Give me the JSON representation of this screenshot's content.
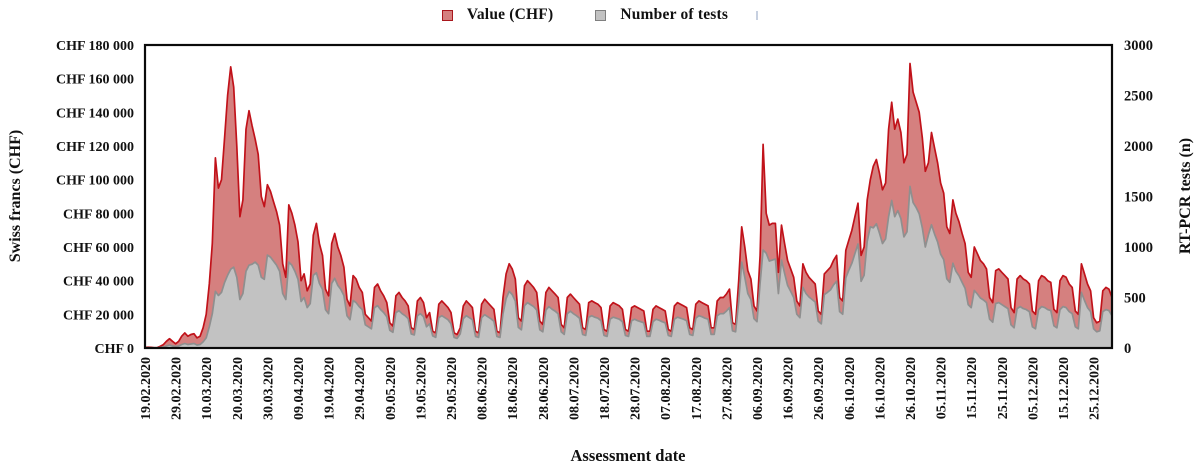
{
  "chart_data": {
    "type": "area",
    "title": "",
    "xlabel": "Assessment date",
    "grid": false,
    "legend_position": "top-center",
    "x_tick_step_days": 10,
    "x_tick_labels": [
      "19.02.2020",
      "29.02.2020",
      "10.03.2020",
      "20.03.2020",
      "30.03.2020",
      "09.04.2020",
      "19.04.2020",
      "29.04.2020",
      "09.05.2020",
      "19.05.2020",
      "29.05.2020",
      "08.06.2020",
      "18.06.2020",
      "28.06.2020",
      "08.07.2020",
      "18.07.2020",
      "28.07.2020",
      "07.08.2020",
      "17.08.2020",
      "27.08.2020",
      "06.09.2020",
      "16.09.2020",
      "26.09.2020",
      "06.10.2020",
      "16.10.2020",
      "26.10.2020",
      "05.11.2020",
      "15.11.2020",
      "25.11.2020",
      "05.12.2020",
      "15.12.2020",
      "25.12.2020"
    ],
    "left_axis": {
      "title": "Swiss francs (CHF)",
      "min": 0,
      "max": 180000,
      "tick_labels": [
        "CHF 180 000",
        "CHF 160 000",
        "CHF 140 000",
        "CHF 120 000",
        "CHF 100 000",
        "CHF 80 000",
        "CHF 60 000",
        "CHF 40 000",
        "CHF 20 000",
        "CHF 0"
      ]
    },
    "right_axis": {
      "title": "RT-PCR tests (n)",
      "min": 0,
      "max": 3000,
      "tick_labels": [
        "3000",
        "2500",
        "2000",
        "1500",
        "1000",
        "500",
        "0"
      ]
    },
    "series": [
      {
        "name": "Value (CHF)",
        "axis": "left",
        "fill": "#d5807f",
        "stroke": "#c1121a",
        "values": [
          300,
          500,
          400,
          200,
          200,
          1000,
          2000,
          4000,
          5500,
          4000,
          2500,
          4000,
          7000,
          9000,
          7000,
          8000,
          8500,
          6000,
          7000,
          12000,
          20000,
          38000,
          62000,
          113000,
          95000,
          100000,
          125000,
          150000,
          167000,
          155000,
          120000,
          78000,
          88000,
          130000,
          141000,
          132000,
          124000,
          115000,
          90000,
          84000,
          97000,
          93000,
          87000,
          81000,
          73000,
          50000,
          42000,
          85000,
          80000,
          73000,
          63000,
          40000,
          44000,
          34000,
          38000,
          67000,
          74000,
          62000,
          55000,
          35000,
          31000,
          62000,
          68000,
          60000,
          55000,
          48000,
          29000,
          25000,
          43000,
          41000,
          36000,
          33000,
          20000,
          18000,
          16000,
          36000,
          38000,
          34000,
          31000,
          27000,
          15000,
          13000,
          31000,
          33000,
          30000,
          28000,
          25000,
          12000,
          11000,
          28000,
          30000,
          27000,
          18000,
          21000,
          10000,
          9000,
          26000,
          28000,
          26000,
          24000,
          21000,
          9000,
          8000,
          12000,
          25000,
          28000,
          26000,
          24000,
          10000,
          9000,
          26000,
          29000,
          27000,
          25000,
          23000,
          10000,
          9000,
          30000,
          44000,
          50000,
          47000,
          41000,
          18000,
          16000,
          37000,
          40000,
          38000,
          36000,
          33000,
          16000,
          14000,
          33000,
          36000,
          34000,
          32000,
          30000,
          14000,
          12000,
          30000,
          32000,
          30000,
          28000,
          26000,
          12000,
          11000,
          27000,
          28000,
          27000,
          26000,
          24000,
          11000,
          10000,
          25000,
          27000,
          26000,
          25000,
          23000,
          11000,
          10000,
          24000,
          25000,
          24000,
          23000,
          22000,
          10000,
          10000,
          23000,
          25000,
          24000,
          23000,
          22000,
          11000,
          10000,
          25000,
          27000,
          26000,
          25000,
          24000,
          12000,
          11000,
          26000,
          28000,
          27000,
          26000,
          25000,
          12000,
          12000,
          28000,
          30000,
          30000,
          32000,
          35000,
          15000,
          14000,
          40000,
          72000,
          60000,
          46000,
          41000,
          25000,
          22000,
          55000,
          121000,
          80000,
          73000,
          74000,
          74000,
          45000,
          73000,
          62000,
          52000,
          47000,
          42000,
          28000,
          25000,
          50000,
          45000,
          42000,
          40000,
          38000,
          22000,
          20000,
          44000,
          46000,
          48000,
          52000,
          55000,
          30000,
          28000,
          58000,
          64000,
          70000,
          78000,
          86000,
          55000,
          60000,
          88000,
          100000,
          108000,
          112000,
          104000,
          94000,
          98000,
          130000,
          146000,
          130000,
          136000,
          128000,
          110000,
          115000,
          169000,
          152000,
          146000,
          140000,
          125000,
          105000,
          110000,
          128000,
          119000,
          110000,
          98000,
          92000,
          72000,
          68000,
          88000,
          80000,
          75000,
          68000,
          62000,
          45000,
          42000,
          60000,
          56000,
          52000,
          50000,
          47000,
          30000,
          27000,
          46000,
          47000,
          45000,
          43000,
          41000,
          24000,
          21000,
          41000,
          43000,
          41000,
          40000,
          38000,
          22000,
          20000,
          40000,
          43000,
          42000,
          40000,
          39000,
          23000,
          21000,
          40000,
          43000,
          42000,
          38000,
          36000,
          22000,
          20000,
          50000,
          44000,
          38000,
          34000,
          18000,
          15000,
          16000,
          34000,
          36000,
          35000,
          30000
        ]
      },
      {
        "name": "Number of tests",
        "axis": "right",
        "fill": "#c2c2c2",
        "stroke": "#8f8f8f",
        "values": [
          0,
          0,
          0,
          0,
          0,
          5,
          10,
          20,
          30,
          20,
          15,
          20,
          35,
          45,
          35,
          40,
          45,
          30,
          35,
          60,
          100,
          210,
          340,
          560,
          520,
          550,
          650,
          720,
          780,
          800,
          700,
          480,
          540,
          760,
          820,
          830,
          850,
          820,
          700,
          680,
          920,
          900,
          860,
          820,
          760,
          540,
          480,
          850,
          820,
          760,
          680,
          460,
          500,
          400,
          440,
          720,
          745,
          640,
          580,
          380,
          340,
          640,
          690,
          620,
          580,
          520,
          320,
          280,
          470,
          450,
          410,
          380,
          230,
          210,
          190,
          400,
          420,
          380,
          350,
          310,
          175,
          155,
          350,
          370,
          340,
          320,
          290,
          140,
          130,
          320,
          340,
          310,
          210,
          240,
          120,
          105,
          300,
          320,
          300,
          280,
          240,
          105,
          95,
          140,
          290,
          320,
          300,
          280,
          115,
          105,
          300,
          330,
          310,
          290,
          265,
          115,
          105,
          340,
          490,
          560,
          530,
          465,
          205,
          180,
          420,
          450,
          430,
          410,
          375,
          180,
          160,
          375,
          410,
          385,
          365,
          340,
          160,
          135,
          340,
          365,
          340,
          320,
          295,
          135,
          125,
          305,
          320,
          305,
          295,
          270,
          125,
          115,
          285,
          305,
          295,
          285,
          260,
          125,
          115,
          270,
          285,
          270,
          260,
          250,
          115,
          115,
          260,
          285,
          275,
          260,
          250,
          125,
          115,
          285,
          305,
          295,
          285,
          270,
          135,
          125,
          295,
          320,
          310,
          295,
          285,
          135,
          135,
          320,
          340,
          340,
          365,
          400,
          170,
          160,
          460,
          850,
          700,
          540,
          480,
          290,
          260,
          640,
          970,
          940,
          860,
          870,
          880,
          540,
          870,
          740,
          620,
          560,
          500,
          335,
          300,
          600,
          540,
          505,
          480,
          455,
          265,
          240,
          530,
          550,
          575,
          625,
          660,
          360,
          335,
          695,
          770,
          840,
          935,
          1030,
          660,
          720,
          1055,
          1200,
          1190,
          1230,
          1140,
          1035,
          1080,
          1300,
          1460,
          1300,
          1360,
          1280,
          1100,
          1150,
          1600,
          1440,
          1390,
          1330,
          1190,
          1000,
          1120,
          1220,
          1130,
          1050,
          930,
          875,
          685,
          650,
          840,
          760,
          715,
          650,
          590,
          430,
          400,
          570,
          535,
          495,
          475,
          450,
          285,
          255,
          440,
          450,
          430,
          410,
          390,
          230,
          200,
          390,
          410,
          390,
          380,
          360,
          210,
          190,
          380,
          410,
          400,
          380,
          370,
          220,
          200,
          380,
          410,
          400,
          360,
          340,
          210,
          190,
          550,
          470,
          400,
          360,
          190,
          160,
          170,
          360,
          380,
          370,
          320
        ]
      }
    ]
  }
}
